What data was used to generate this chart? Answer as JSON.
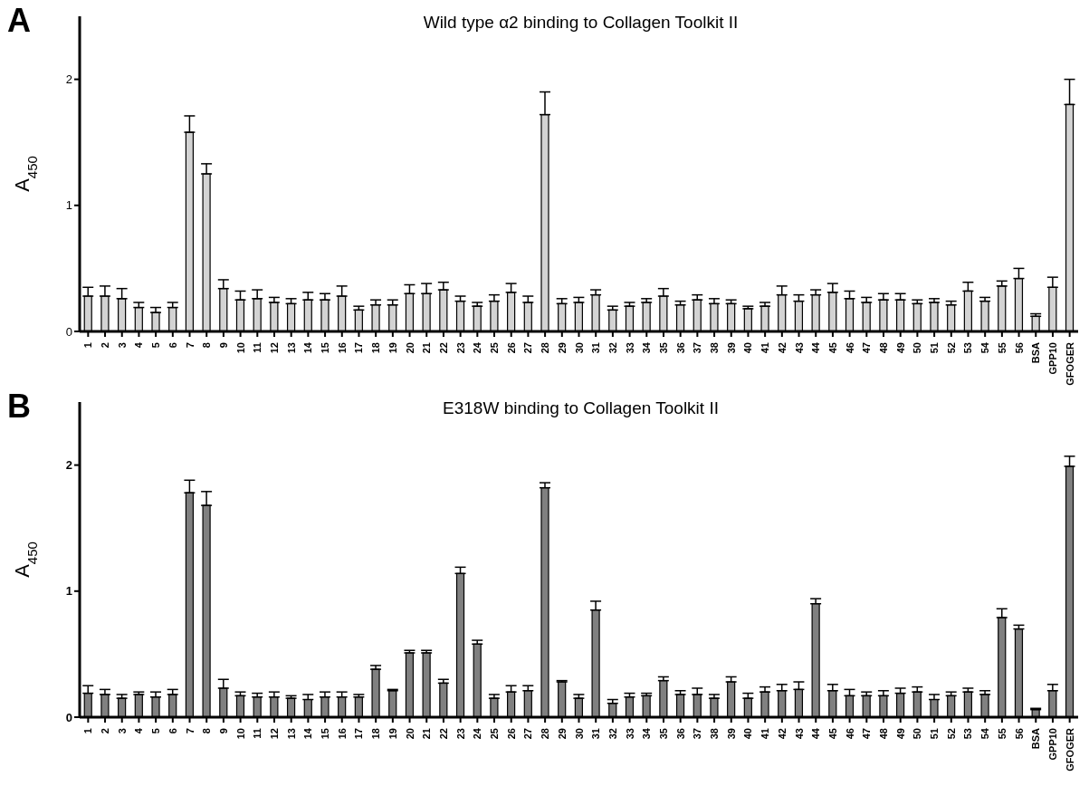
{
  "chart_data": [
    {
      "type": "bar",
      "title": "Wild type α2 binding to Collagen Toolkit II",
      "ylabel": "A$_{450}$",
      "annotations": [
        "A"
      ],
      "categories": [
        "1",
        "2",
        "3",
        "4",
        "5",
        "6",
        "7",
        "8",
        "9",
        "10",
        "11",
        "12",
        "13",
        "14",
        "15",
        "16",
        "17",
        "18",
        "19",
        "20",
        "21",
        "22",
        "23",
        "24",
        "25",
        "26",
        "27",
        "28",
        "29",
        "30",
        "31",
        "32",
        "33",
        "34",
        "35",
        "36",
        "37",
        "38",
        "39",
        "40",
        "41",
        "42",
        "43",
        "44",
        "45",
        "46",
        "47",
        "48",
        "49",
        "50",
        "51",
        "52",
        "53",
        "54",
        "55",
        "56",
        "BSA",
        "GPP10",
        "GFOGER"
      ],
      "series": [
        {
          "color": "#d3d3d3",
          "values": [
            0.28,
            0.28,
            0.26,
            0.19,
            0.15,
            0.19,
            1.58,
            1.25,
            0.34,
            0.25,
            0.26,
            0.23,
            0.22,
            0.25,
            0.25,
            0.28,
            0.17,
            0.21,
            0.21,
            0.3,
            0.3,
            0.33,
            0.24,
            0.2,
            0.24,
            0.31,
            0.23,
            1.72,
            0.22,
            0.23,
            0.29,
            0.17,
            0.2,
            0.23,
            0.28,
            0.21,
            0.25,
            0.22,
            0.22,
            0.18,
            0.2,
            0.29,
            0.24,
            0.29,
            0.31,
            0.26,
            0.23,
            0.25,
            0.25,
            0.22,
            0.23,
            0.21,
            0.32,
            0.24,
            0.36,
            0.42,
            0.12,
            0.35,
            1.8
          ],
          "errors": [
            [
              0.28,
              0.35
            ],
            [
              0.28,
              0.36
            ],
            [
              0.26,
              0.34
            ],
            [
              0.19,
              0.23
            ],
            [
              0.15,
              0.19
            ],
            [
              0.19,
              0.23
            ],
            [
              1.58,
              1.71
            ],
            [
              1.25,
              1.33
            ],
            [
              0.34,
              0.41
            ],
            [
              0.25,
              0.32
            ],
            [
              0.26,
              0.33
            ],
            [
              0.23,
              0.27
            ],
            [
              0.22,
              0.26
            ],
            [
              0.25,
              0.31
            ],
            [
              0.25,
              0.3
            ],
            [
              0.28,
              0.36
            ],
            [
              0.17,
              0.2
            ],
            [
              0.21,
              0.25
            ],
            [
              0.21,
              0.25
            ],
            [
              0.3,
              0.37
            ],
            [
              0.3,
              0.38
            ],
            [
              0.33,
              0.39
            ],
            [
              0.24,
              0.28
            ],
            [
              0.2,
              0.23
            ],
            [
              0.24,
              0.29
            ],
            [
              0.31,
              0.38
            ],
            [
              0.23,
              0.28
            ],
            [
              1.72,
              1.9
            ],
            [
              0.22,
              0.26
            ],
            [
              0.23,
              0.27
            ],
            [
              0.29,
              0.33
            ],
            [
              0.17,
              0.2
            ],
            [
              0.2,
              0.23
            ],
            [
              0.23,
              0.26
            ],
            [
              0.28,
              0.34
            ],
            [
              0.21,
              0.24
            ],
            [
              0.25,
              0.29
            ],
            [
              0.22,
              0.26
            ],
            [
              0.22,
              0.25
            ],
            [
              0.18,
              0.2
            ],
            [
              0.2,
              0.23
            ],
            [
              0.29,
              0.36
            ],
            [
              0.24,
              0.29
            ],
            [
              0.29,
              0.33
            ],
            [
              0.31,
              0.38
            ],
            [
              0.26,
              0.32
            ],
            [
              0.23,
              0.27
            ],
            [
              0.25,
              0.3
            ],
            [
              0.25,
              0.3
            ],
            [
              0.22,
              0.25
            ],
            [
              0.23,
              0.26
            ],
            [
              0.21,
              0.24
            ],
            [
              0.32,
              0.39
            ],
            [
              0.24,
              0.27
            ],
            [
              0.36,
              0.4
            ],
            [
              0.42,
              0.5
            ],
            [
              0.12,
              0.14
            ],
            [
              0.35,
              0.43
            ],
            [
              1.8,
              2.0
            ]
          ]
        }
      ],
      "ylim": [
        0,
        2.5
      ],
      "yticks": [
        0,
        1,
        2
      ]
    },
    {
      "type": "bar",
      "title": "E318W  binding to Collagen Toolkit II",
      "ylabel": "A$_{450}$",
      "annotations": [
        "B"
      ],
      "categories": [
        "1",
        "2",
        "3",
        "4",
        "5",
        "6",
        "7",
        "8",
        "9",
        "10",
        "11",
        "12",
        "13",
        "14",
        "15",
        "16",
        "17",
        "18",
        "19",
        "20",
        "21",
        "22",
        "23",
        "24",
        "25",
        "26",
        "27",
        "28",
        "29",
        "30",
        "31",
        "32",
        "33",
        "34",
        "35",
        "36",
        "37",
        "38",
        "39",
        "40",
        "41",
        "42",
        "43",
        "44",
        "45",
        "46",
        "47",
        "48",
        "49",
        "50",
        "51",
        "52",
        "53",
        "54",
        "55",
        "56",
        "BSA",
        "GPP10",
        "GFOGER"
      ],
      "series": [
        {
          "color": "#808080",
          "values": [
            0.19,
            0.18,
            0.15,
            0.18,
            0.16,
            0.18,
            1.78,
            1.68,
            0.23,
            0.17,
            0.16,
            0.16,
            0.15,
            0.14,
            0.16,
            0.16,
            0.16,
            0.38,
            0.21,
            0.51,
            0.51,
            0.27,
            1.14,
            0.58,
            0.15,
            0.2,
            0.21,
            1.82,
            0.28,
            0.15,
            0.85,
            0.11,
            0.16,
            0.17,
            0.29,
            0.18,
            0.18,
            0.15,
            0.28,
            0.15,
            0.2,
            0.21,
            0.22,
            0.9,
            0.21,
            0.17,
            0.17,
            0.17,
            0.19,
            0.2,
            0.14,
            0.17,
            0.2,
            0.18,
            0.79,
            0.7,
            0.06,
            0.21,
            1.99
          ],
          "errors": [
            [
              0.19,
              0.25
            ],
            [
              0.18,
              0.22
            ],
            [
              0.15,
              0.18
            ],
            [
              0.18,
              0.2
            ],
            [
              0.16,
              0.2
            ],
            [
              0.18,
              0.22
            ],
            [
              1.78,
              1.88
            ],
            [
              1.68,
              1.79
            ],
            [
              0.23,
              0.3
            ],
            [
              0.17,
              0.2
            ],
            [
              0.16,
              0.19
            ],
            [
              0.16,
              0.2
            ],
            [
              0.15,
              0.17
            ],
            [
              0.14,
              0.18
            ],
            [
              0.16,
              0.2
            ],
            [
              0.16,
              0.2
            ],
            [
              0.16,
              0.18
            ],
            [
              0.38,
              0.41
            ],
            [
              0.21,
              0.22
            ],
            [
              0.51,
              0.53
            ],
            [
              0.51,
              0.53
            ],
            [
              0.27,
              0.3
            ],
            [
              1.14,
              1.19
            ],
            [
              0.58,
              0.61
            ],
            [
              0.15,
              0.18
            ],
            [
              0.2,
              0.25
            ],
            [
              0.21,
              0.25
            ],
            [
              1.82,
              1.86
            ],
            [
              0.28,
              0.29
            ],
            [
              0.15,
              0.18
            ],
            [
              0.85,
              0.92
            ],
            [
              0.11,
              0.14
            ],
            [
              0.16,
              0.19
            ],
            [
              0.17,
              0.19
            ],
            [
              0.29,
              0.32
            ],
            [
              0.18,
              0.21
            ],
            [
              0.18,
              0.23
            ],
            [
              0.15,
              0.18
            ],
            [
              0.28,
              0.32
            ],
            [
              0.15,
              0.19
            ],
            [
              0.2,
              0.24
            ],
            [
              0.21,
              0.26
            ],
            [
              0.22,
              0.28
            ],
            [
              0.9,
              0.94
            ],
            [
              0.21,
              0.26
            ],
            [
              0.17,
              0.22
            ],
            [
              0.17,
              0.2
            ],
            [
              0.17,
              0.21
            ],
            [
              0.19,
              0.23
            ],
            [
              0.2,
              0.24
            ],
            [
              0.14,
              0.18
            ],
            [
              0.17,
              0.2
            ],
            [
              0.2,
              0.23
            ],
            [
              0.18,
              0.21
            ],
            [
              0.79,
              0.86
            ],
            [
              0.7,
              0.73
            ],
            [
              0.06,
              0.07
            ],
            [
              0.21,
              0.26
            ],
            [
              1.99,
              2.07
            ]
          ]
        }
      ],
      "ylim": [
        0,
        2.5
      ],
      "yticks": [
        0,
        1,
        2
      ]
    }
  ]
}
